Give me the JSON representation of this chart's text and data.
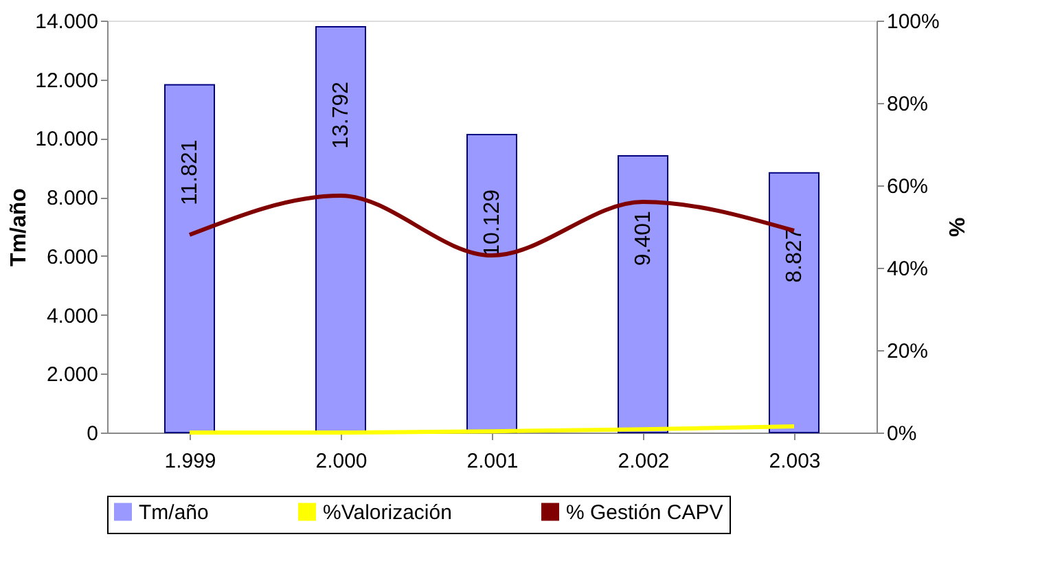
{
  "chart_data": {
    "type": "bar",
    "ylabel": "Tm/año",
    "y2label": "%",
    "categories": [
      "1.999",
      "2.000",
      "2.001",
      "2.002",
      "2.003"
    ],
    "series": [
      {
        "name": "Tm/año",
        "color": "#9999ff",
        "values": [
          11821,
          13792,
          10129,
          9401,
          8827
        ],
        "value_labels": [
          "11.821",
          "13.792",
          "10.129",
          "9.401",
          "8.827"
        ]
      },
      {
        "name": "%Valorización",
        "type": "line",
        "axis": "y2",
        "color": "#ffff00",
        "values": [
          0,
          0,
          0.3,
          0.8,
          1.5
        ]
      },
      {
        "name": "% Gestión CAPV",
        "type": "line",
        "axis": "y2",
        "color": "#800000",
        "values": [
          48,
          57.5,
          43,
          56,
          49
        ]
      }
    ],
    "ylim": [
      0,
      14000
    ],
    "yticks": [
      {
        "value": 0,
        "label": "0"
      },
      {
        "value": 2000,
        "label": "2.000"
      },
      {
        "value": 4000,
        "label": "4.000"
      },
      {
        "value": 6000,
        "label": "6.000"
      },
      {
        "value": 8000,
        "label": "8.000"
      },
      {
        "value": 10000,
        "label": "10.000"
      },
      {
        "value": 12000,
        "label": "12.000"
      },
      {
        "value": 14000,
        "label": "14.000"
      }
    ],
    "y2lim": [
      0,
      100
    ],
    "y2ticks": [
      {
        "value": 0,
        "label": "0%"
      },
      {
        "value": 20,
        "label": "20%"
      },
      {
        "value": 40,
        "label": "40%"
      },
      {
        "value": 60,
        "label": "60%"
      },
      {
        "value": 80,
        "label": "80%"
      },
      {
        "value": 100,
        "label": "100%"
      }
    ],
    "grid": false,
    "legend": "bottom"
  }
}
